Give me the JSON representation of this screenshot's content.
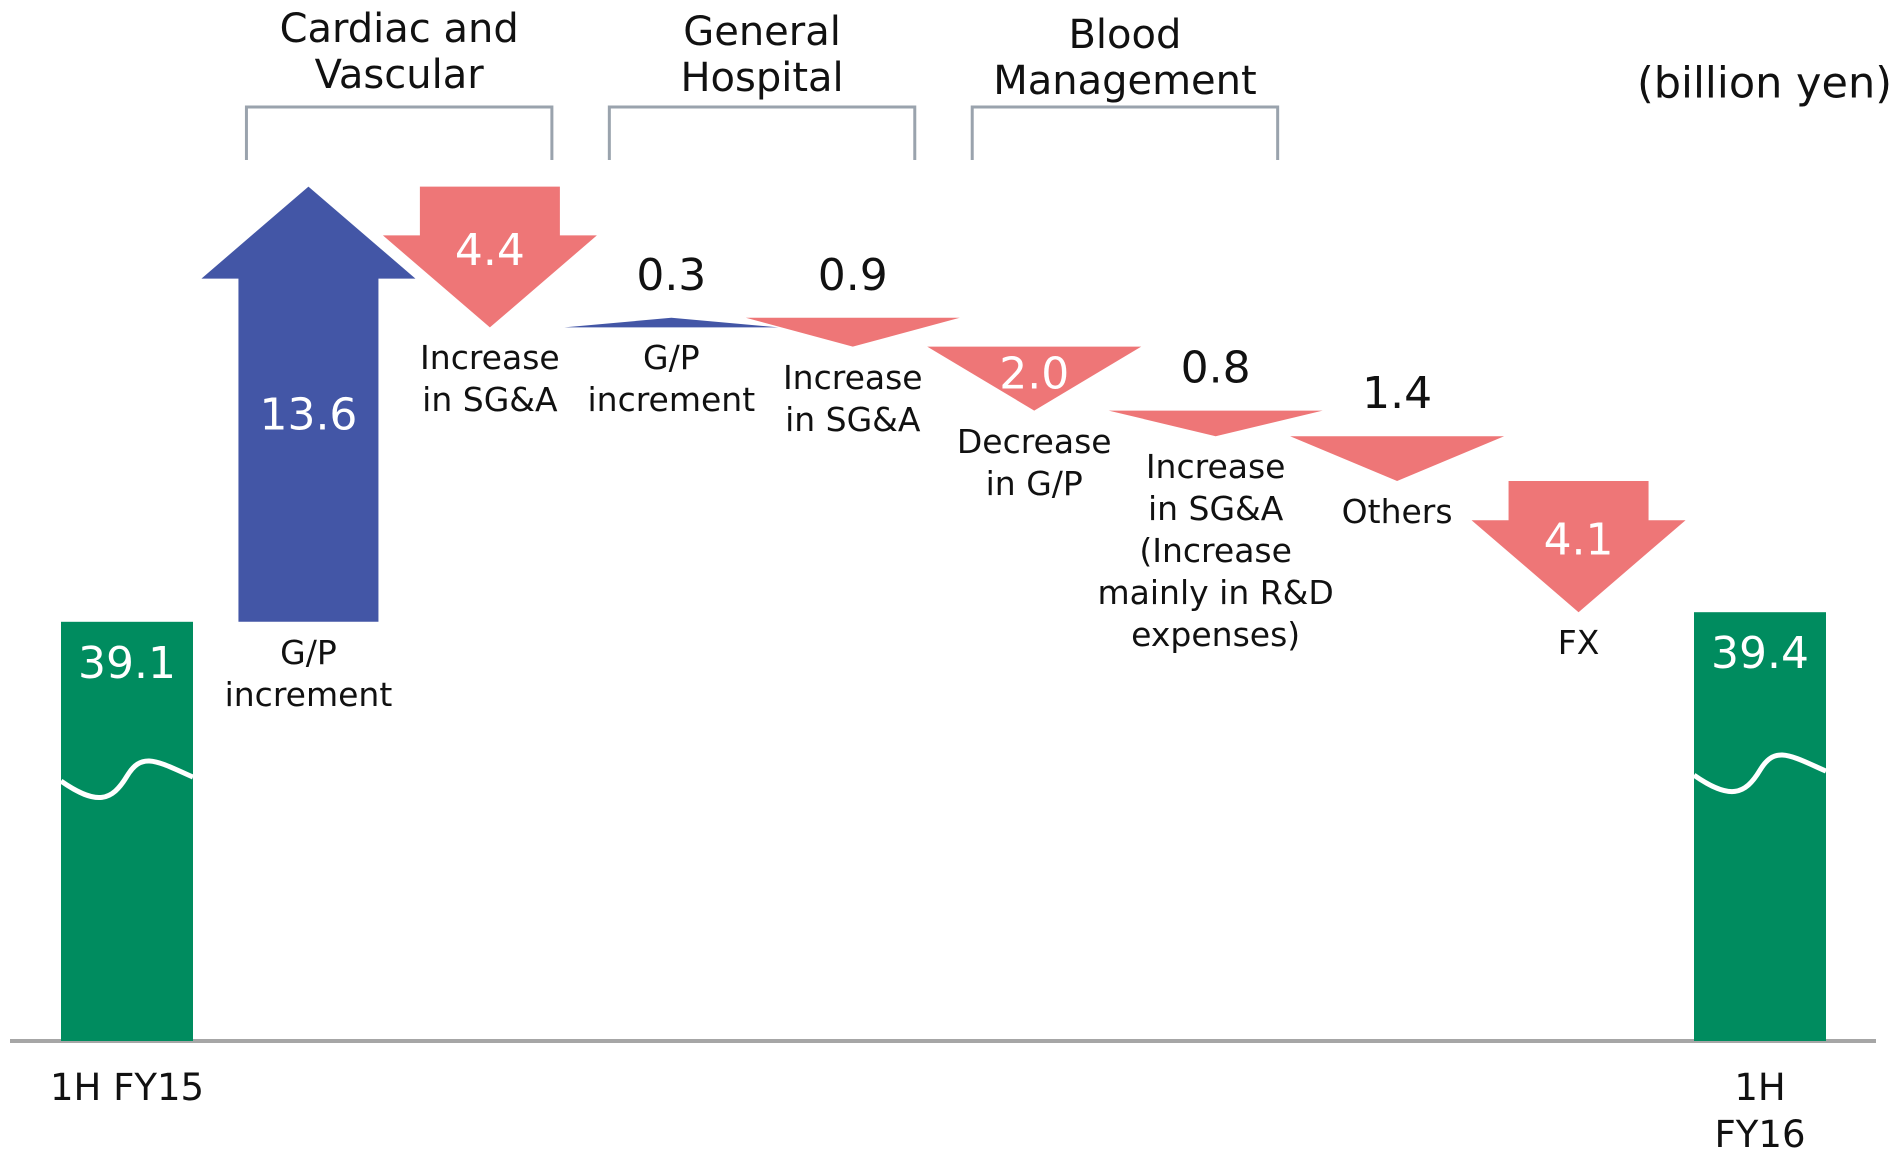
{
  "chart_data": {
    "type": "waterfall",
    "unit": "(billion yen)",
    "categories": [
      "1H FY15",
      "G/P\nincrement",
      "Increase\nin SG&A",
      "G/P\nincrement",
      "Increase\nin SG&A",
      "Decrease\nin G/P",
      "Increase\nin SG&A\n(Increase\nmainly in R&D\nexpenses)",
      "Others",
      "FX",
      "1H FY16"
    ],
    "values": [
      39.1,
      13.6,
      -4.4,
      0.3,
      -0.9,
      -2.0,
      -0.8,
      -1.4,
      -4.1,
      39.4
    ],
    "value_labels": [
      "39.1",
      "13.6",
      "4.4",
      "0.3",
      "0.9",
      "2.0",
      "0.8",
      "1.4",
      "4.1",
      "39.4"
    ],
    "measure": [
      "total",
      "relative",
      "relative",
      "relative",
      "relative",
      "relative",
      "relative",
      "relative",
      "relative",
      "total"
    ],
    "colors": {
      "increase": "#4356a6",
      "decrease": "#ee7677",
      "total": "#008c5f"
    },
    "groups": [
      {
        "label": "Cardiac and\nVascular",
        "members": [
          1,
          2
        ]
      },
      {
        "label": "General\nHospital",
        "members": [
          3,
          4
        ]
      },
      {
        "label": "Blood\nManagement",
        "members": [
          5,
          6
        ]
      }
    ],
    "ylim": [
      26,
      56
    ],
    "axis_break": true
  }
}
